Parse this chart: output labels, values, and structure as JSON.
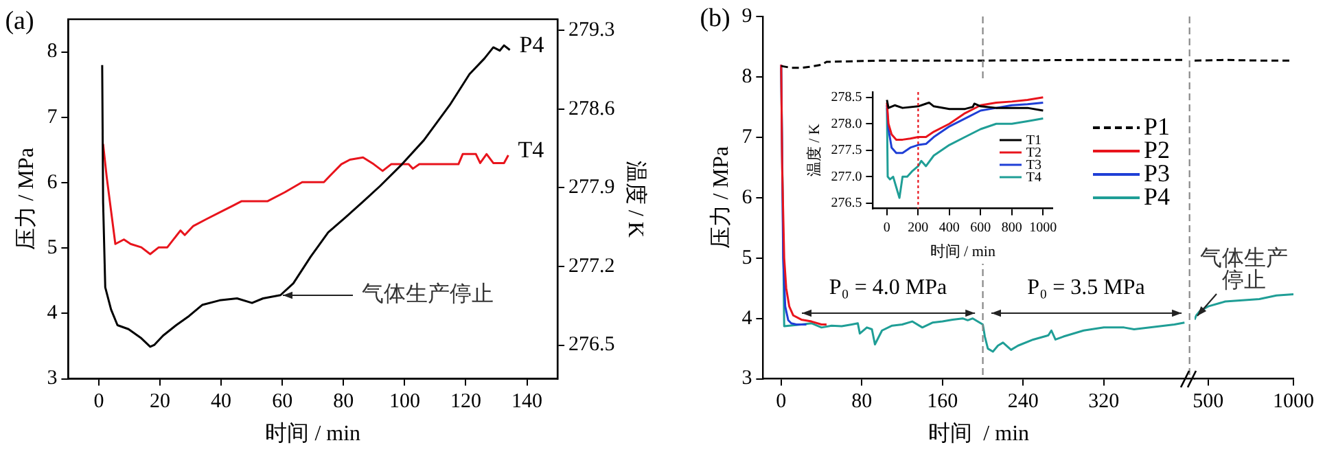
{
  "chart_data": [
    {
      "type": "line",
      "title": "(a)",
      "xlabel": "时间 / min",
      "ylabel": "压力 / MPa",
      "y2label": "温度 / K",
      "xlim": [
        -10,
        150
      ],
      "xticks": [
        0,
        20,
        40,
        60,
        80,
        100,
        120,
        140
      ],
      "ylim": [
        3,
        8.5
      ],
      "yticks": [
        3,
        4,
        5,
        6,
        7,
        8
      ],
      "y2lim": [
        276.2,
        279.4
      ],
      "y2ticks": [
        276.5,
        277.2,
        277.9,
        278.6,
        279.3
      ],
      "legend": false,
      "marker": "none",
      "annotations": [
        {
          "text": "气体生产停止",
          "x": 59,
          "y": 4.27
        }
      ],
      "series": [
        {
          "name": "P4",
          "color": "#000000",
          "x": [
            1.1,
            1.4,
            2.1,
            4,
            6.1,
            9.7,
            13.9,
            16.8,
            18.2,
            21,
            25.3,
            29.5,
            33.8,
            39.5,
            45.2,
            50.1,
            53.7,
            59.4,
            63.6,
            69.3,
            75,
            80.7,
            86.4,
            92,
            99.1,
            106.3,
            114.8,
            121.2,
            126.1,
            129,
            131.1,
            132.5,
            134.4
          ],
          "values": [
            7.8,
            5.7,
            4.4,
            4.06,
            3.82,
            3.76,
            3.62,
            3.49,
            3.52,
            3.66,
            3.82,
            3.96,
            4.13,
            4.2,
            4.23,
            4.16,
            4.23,
            4.28,
            4.46,
            4.87,
            5.24,
            5.47,
            5.71,
            5.95,
            6.28,
            6.65,
            7.19,
            7.66,
            7.9,
            8.07,
            8.02,
            8.1,
            8.03
          ]
        },
        {
          "name": "T4",
          "color": "#e8141c",
          "axis": "y2",
          "x": [
            1.4,
            2.6,
            5.4,
            6.8,
            8.2,
            10.4,
            13.9,
            16.8,
            19.6,
            22.4,
            26.7,
            28.1,
            30.9,
            35.1,
            40.9,
            43.8,
            46.6,
            55.1,
            60.8,
            66.5,
            73.6,
            76.4,
            79.3,
            82.1,
            86.4,
            89.9,
            92.8,
            95.6,
            101.3,
            102.7,
            104.8,
            117.6,
            119,
            123.3,
            124.7,
            126.8,
            129,
            132.5,
            133.9
          ],
          "values": [
            278.29,
            277.99,
            277.4,
            277.42,
            277.44,
            277.4,
            277.37,
            277.31,
            277.37,
            277.37,
            277.52,
            277.48,
            277.56,
            277.62,
            277.7,
            277.74,
            277.78,
            277.78,
            277.86,
            277.95,
            277.95,
            278.03,
            278.11,
            278.15,
            278.17,
            278.11,
            278.05,
            278.11,
            278.11,
            278.07,
            278.11,
            278.11,
            278.2,
            278.2,
            278.12,
            278.2,
            278.12,
            278.12,
            278.19
          ]
        }
      ]
    },
    {
      "type": "line",
      "title": "(b)",
      "xlabel": "时间  / min",
      "ylabel": "压力 / MPa",
      "xlim": [
        -18,
        410
      ],
      "xticks": [
        0,
        80,
        160,
        240,
        320
      ],
      "ylim": [
        3,
        9
      ],
      "yticks": [
        3,
        4,
        5,
        6,
        7,
        8,
        9
      ],
      "legend": "top right",
      "marker": "none",
      "ref_lines": [
        {
          "axis": "x",
          "value": 200,
          "color": "#888888",
          "line_style": "dashed"
        },
        {
          "axis": "x",
          "value": 405,
          "color": "#888888",
          "line_style": "dashed"
        }
      ],
      "annotations": [
        "P₀ = 4.0 MPa",
        "P₀ = 3.5 MPa"
      ],
      "series": [
        {
          "name": "P1",
          "color": "#000000",
          "line_style": "dashed",
          "x": [
            0,
            10,
            20,
            30,
            40,
            45,
            50,
            100,
            200,
            300,
            400
          ],
          "values": [
            8.18,
            8.15,
            8.15,
            8.17,
            8.2,
            8.25,
            8.25,
            8.27,
            8.27,
            8.28,
            8.28
          ]
        },
        {
          "name": "P2",
          "color": "#e8141c",
          "x": [
            0,
            1,
            3,
            5,
            8,
            12,
            20,
            30,
            40,
            45
          ],
          "values": [
            8.2,
            6.5,
            5.0,
            4.5,
            4.2,
            4.05,
            3.98,
            3.95,
            3.9,
            3.9
          ]
        },
        {
          "name": "P3",
          "color": "#1f3fd6",
          "x": [
            0,
            2,
            4,
            7,
            10,
            15,
            25
          ],
          "values": [
            8.2,
            5.0,
            4.2,
            3.97,
            3.92,
            3.9,
            3.9
          ]
        },
        {
          "name": "P4",
          "color": "#1f9e96",
          "x": [
            0,
            3,
            20,
            30,
            40,
            50,
            60,
            70,
            76,
            78,
            85,
            90,
            93,
            100,
            110,
            120,
            130,
            140,
            150,
            160,
            170,
            180,
            185,
            190,
            198,
            200,
            202,
            205,
            210,
            215,
            220,
            228,
            235,
            250,
            265,
            268,
            272,
            280,
            300,
            320,
            340,
            350,
            370,
            390,
            400
          ],
          "values": [
            8.15,
            3.87,
            3.9,
            3.92,
            3.85,
            3.88,
            3.87,
            3.9,
            3.92,
            3.75,
            3.85,
            3.82,
            3.57,
            3.8,
            3.88,
            3.9,
            3.95,
            3.85,
            3.93,
            3.95,
            3.98,
            4.0,
            3.97,
            4.0,
            3.92,
            3.9,
            3.7,
            3.5,
            3.45,
            3.55,
            3.6,
            3.48,
            3.55,
            3.65,
            3.72,
            3.8,
            3.65,
            3.7,
            3.8,
            3.85,
            3.85,
            3.82,
            3.86,
            3.9,
            3.93
          ]
        }
      ]
    },
    {
      "type": "line",
      "xlim": [
        420,
        1000
      ],
      "xticks": [
        500,
        1000
      ],
      "ylim": [
        3,
        9
      ],
      "tick_labels": "x",
      "legend": false,
      "marker": "none",
      "annotations": [
        {
          "text": "气体生产停止",
          "x": 420,
          "y": 3.98
        }
      ],
      "series": [
        {
          "color": "#000000",
          "line_style": "dashed",
          "x": [
            420,
            600,
            800,
            1000
          ],
          "values": [
            8.27,
            8.28,
            8.27,
            8.27
          ]
        },
        {
          "color": "#1f9e96",
          "x": [
            420,
            430,
            450,
            500,
            600,
            700,
            800,
            900,
            1000
          ],
          "values": [
            3.98,
            4.05,
            4.12,
            4.2,
            4.28,
            4.3,
            4.32,
            4.38,
            4.4
          ]
        }
      ]
    },
    {
      "type": "line",
      "xlabel": "时间 / min",
      "ylabel": "温度 / K",
      "xlim": [
        -90,
        1060
      ],
      "xticks": [
        0,
        200,
        400,
        600,
        800,
        1000
      ],
      "ylim": [
        276.4,
        278.6
      ],
      "yticks": [
        276.5,
        {
          "value": 277,
          "label": "277.0"
        },
        277.5,
        {
          "value": 278,
          "label": "278.0"
        },
        278.5
      ],
      "legend": "bottom right",
      "marker": "none",
      "ref_lines": [
        {
          "axis": "x",
          "value": 200,
          "color": "#e8141c",
          "line_style": "dotted"
        }
      ],
      "series": [
        {
          "name": "T1",
          "color": "#000000",
          "x": [
            0,
            10,
            50,
            100,
            200,
            250,
            270,
            300,
            400,
            500,
            550,
            560,
            600,
            700,
            800,
            900,
            1000
          ],
          "values": [
            278.45,
            278.3,
            278.35,
            278.3,
            278.33,
            278.38,
            278.4,
            278.33,
            278.28,
            278.28,
            278.32,
            278.38,
            278.33,
            278.3,
            278.3,
            278.3,
            278.25
          ]
        },
        {
          "name": "T2",
          "color": "#e8141c",
          "x": [
            0,
            10,
            30,
            60,
            100,
            150,
            200,
            250,
            300,
            400,
            500,
            600,
            700,
            800,
            900,
            1000
          ],
          "values": [
            278.4,
            278.0,
            277.8,
            277.7,
            277.7,
            277.72,
            277.75,
            277.75,
            277.85,
            278.0,
            278.2,
            278.35,
            278.4,
            278.42,
            278.45,
            278.5
          ]
        },
        {
          "name": "T3",
          "color": "#1f3fd6",
          "x": [
            0,
            10,
            30,
            60,
            100,
            150,
            200,
            250,
            300,
            400,
            500,
            600,
            700,
            800,
            900,
            1000
          ],
          "values": [
            278.35,
            277.9,
            277.55,
            277.45,
            277.45,
            277.55,
            277.6,
            277.62,
            277.75,
            277.95,
            278.1,
            278.25,
            278.3,
            278.35,
            278.37,
            278.4
          ]
        },
        {
          "name": "T4",
          "color": "#1f9e96",
          "x": [
            0,
            5,
            20,
            40,
            60,
            80,
            100,
            130,
            160,
            200,
            220,
            250,
            300,
            400,
            500,
            600,
            700,
            800,
            900,
            1000
          ],
          "values": [
            278.3,
            277.0,
            276.95,
            277.0,
            276.8,
            276.6,
            277.0,
            277.0,
            277.1,
            277.2,
            277.3,
            277.2,
            277.4,
            277.6,
            277.75,
            277.9,
            278.0,
            278.0,
            278.05,
            278.1
          ]
        }
      ]
    }
  ]
}
